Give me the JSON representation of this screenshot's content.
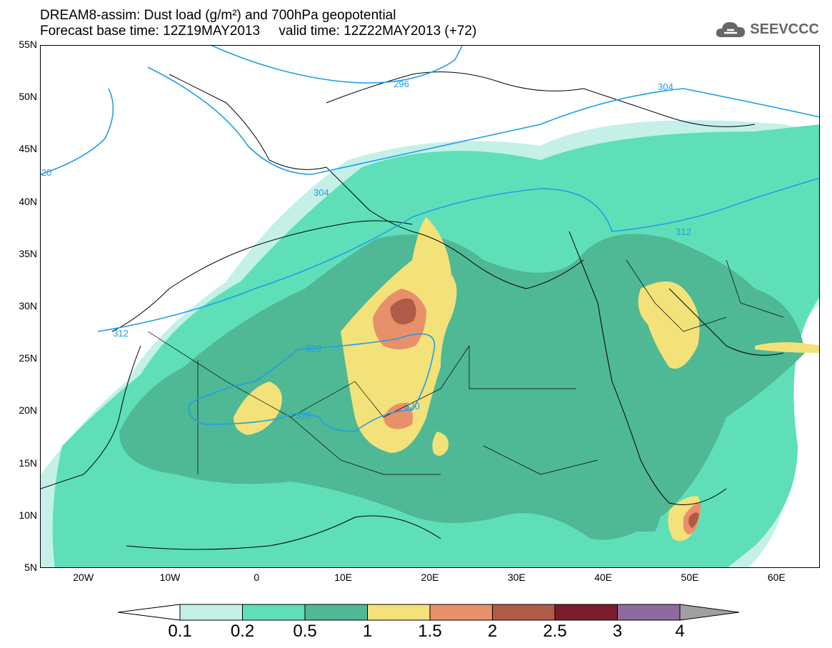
{
  "title_line1": "DREAM8-assim: Dust load (g/m²) and 700hPa geopotential",
  "title_line2": "Forecast base time: 12Z19MAY2013     valid time: 12Z22MAY2013 (+72)",
  "logo": {
    "text": "SEEVCCC",
    "icon": "cloud-logo-icon"
  },
  "map": {
    "lon_range": [
      -25,
      65
    ],
    "lat_range": [
      5,
      55
    ],
    "lat_ticks": [
      "55N",
      "50N",
      "45N",
      "40N",
      "35N",
      "30N",
      "25N",
      "20N",
      "15N",
      "10N",
      "5N"
    ],
    "lon_ticks": [
      "20W",
      "10W",
      "0",
      "10E",
      "20E",
      "30E",
      "40E",
      "50E",
      "60E"
    ],
    "contour_labels": [
      "296",
      "304",
      "304",
      "312",
      "312",
      "320",
      "320",
      "320",
      "20"
    ]
  },
  "colorbar": {
    "levels": [
      "0.1",
      "0.2",
      "0.5",
      "1",
      "1.5",
      "2",
      "2.5",
      "3",
      "4"
    ],
    "colors": [
      "#c4f0e8",
      "#5edfb8",
      "#4fb894",
      "#f3e17a",
      "#e8906a",
      "#b05a48",
      "#7a1c2e",
      "#8e6aa0",
      "#a0a0a0"
    ]
  }
}
